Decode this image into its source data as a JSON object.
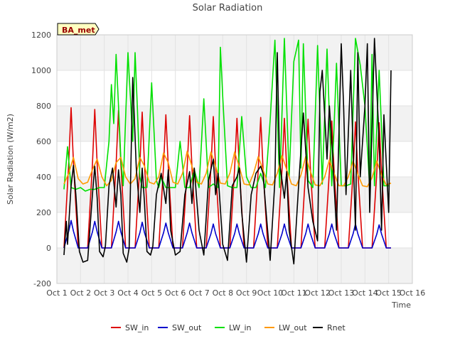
{
  "chart_data": {
    "type": "line",
    "title": "Solar Radiation",
    "xlabel": "Time",
    "ylabel": "Solar Radiation (W/m2)",
    "badge": "BA_met",
    "xlim": [
      1,
      16
    ],
    "ylim": [
      -200,
      1200
    ],
    "x_ticks": [
      1,
      2,
      3,
      4,
      5,
      6,
      7,
      8,
      9,
      10,
      11,
      12,
      13,
      14,
      15,
      16
    ],
    "x_tick_labels": [
      "Oct 1",
      "Oct 2",
      "Oct 3",
      "Oct 4",
      "Oct 5",
      "Oct 6",
      "Oct 7",
      "Oct 8",
      "Oct 9",
      "Oct 10",
      "Oct 11",
      "Oct 12",
      "Oct 13",
      "Oct 14",
      "Oct 15",
      "Oct 16"
    ],
    "y_ticks": [
      -200,
      0,
      200,
      400,
      600,
      800,
      1000,
      1200
    ],
    "y_tick_labels": [
      "-200",
      "0",
      "200",
      "400",
      "600",
      "800",
      "1000",
      "1200"
    ],
    "bands": [
      [
        -200,
        0
      ],
      [
        200,
        400
      ],
      [
        600,
        800
      ],
      [
        1000,
        1200
      ]
    ],
    "legend": [
      "SW_in",
      "SW_out",
      "LW_in",
      "LW_out",
      "Rnet"
    ],
    "series": [
      {
        "name": "SW_in",
        "color": "#dd0000",
        "x": [
          1.3,
          1.5,
          1.6,
          1.7,
          1.9,
          2.1,
          2.3,
          2.5,
          2.6,
          2.7,
          2.9,
          3.1,
          3.3,
          3.5,
          3.6,
          3.7,
          3.9,
          4.1,
          4.3,
          4.5,
          4.6,
          4.7,
          4.9,
          5.1,
          5.3,
          5.5,
          5.6,
          5.7,
          5.9,
          6.1,
          6.3,
          6.5,
          6.6,
          6.7,
          6.9,
          7.1,
          7.3,
          7.5,
          7.6,
          7.7,
          7.9,
          8.1,
          8.3,
          8.5,
          8.6,
          8.7,
          8.9,
          9.1,
          9.3,
          9.5,
          9.6,
          9.7,
          9.9,
          10.1,
          10.3,
          10.5,
          10.6,
          10.7,
          10.9,
          11.1,
          11.3,
          11.5,
          11.6,
          11.7,
          11.9,
          12.1,
          12.3,
          12.5,
          12.6,
          12.7,
          12.9,
          13.1,
          13.3,
          13.5,
          13.6,
          13.7,
          13.9,
          14.1,
          14.3,
          14.5,
          14.6,
          14.7,
          14.9,
          15.1
        ],
        "values": [
          0,
          480,
          790,
          480,
          0,
          0,
          0,
          470,
          780,
          470,
          0,
          0,
          0,
          470,
          775,
          470,
          0,
          0,
          0,
          465,
          765,
          465,
          0,
          0,
          0,
          460,
          750,
          460,
          0,
          0,
          0,
          455,
          745,
          455,
          0,
          0,
          0,
          450,
          740,
          450,
          0,
          0,
          0,
          445,
          730,
          445,
          0,
          0,
          0,
          445,
          735,
          445,
          0,
          0,
          0,
          440,
          730,
          440,
          0,
          0,
          0,
          440,
          725,
          440,
          0,
          0,
          0,
          430,
          715,
          430,
          0,
          0,
          0,
          430,
          710,
          430,
          0,
          0,
          0,
          425,
          705,
          425,
          0,
          0
        ]
      },
      {
        "name": "SW_out",
        "color": "#0000cc",
        "x": [
          1.3,
          1.5,
          1.6,
          1.7,
          1.9,
          2.1,
          2.3,
          2.5,
          2.6,
          2.7,
          2.9,
          3.1,
          3.3,
          3.5,
          3.6,
          3.7,
          3.9,
          4.1,
          4.3,
          4.5,
          4.6,
          4.7,
          4.9,
          5.1,
          5.3,
          5.5,
          5.6,
          5.7,
          5.9,
          6.1,
          6.3,
          6.5,
          6.6,
          6.7,
          6.9,
          7.1,
          7.3,
          7.5,
          7.6,
          7.7,
          7.9,
          8.1,
          8.3,
          8.5,
          8.6,
          8.7,
          8.9,
          9.1,
          9.3,
          9.5,
          9.6,
          9.7,
          9.9,
          10.1,
          10.3,
          10.5,
          10.6,
          10.7,
          10.9,
          11.1,
          11.3,
          11.5,
          11.6,
          11.7,
          11.9,
          12.1,
          12.3,
          12.5,
          12.6,
          12.7,
          12.9,
          13.1,
          13.3,
          13.5,
          13.6,
          13.7,
          13.9,
          14.1,
          14.3,
          14.5,
          14.6,
          14.7,
          14.9,
          15.1
        ],
        "values": [
          0,
          95,
          155,
          95,
          0,
          0,
          0,
          90,
          150,
          90,
          0,
          0,
          0,
          90,
          150,
          90,
          0,
          0,
          0,
          85,
          145,
          85,
          0,
          0,
          0,
          85,
          140,
          85,
          0,
          0,
          0,
          85,
          140,
          85,
          0,
          0,
          0,
          80,
          135,
          80,
          0,
          0,
          0,
          80,
          135,
          80,
          0,
          0,
          0,
          80,
          135,
          80,
          0,
          0,
          0,
          80,
          135,
          80,
          0,
          0,
          0,
          80,
          135,
          80,
          0,
          0,
          0,
          80,
          135,
          80,
          0,
          0,
          0,
          80,
          135,
          80,
          0,
          0,
          0,
          78,
          130,
          78,
          0,
          0
        ]
      },
      {
        "name": "LW_in",
        "color": "#00e000",
        "x": [
          1.3,
          1.45,
          1.6,
          1.8,
          2.0,
          2.2,
          2.4,
          2.6,
          2.8,
          3.0,
          3.2,
          3.3,
          3.4,
          3.5,
          3.6,
          3.7,
          3.8,
          4.0,
          4.2,
          4.3,
          4.4,
          4.5,
          4.6,
          4.8,
          5.0,
          5.2,
          5.3,
          5.4,
          5.6,
          5.8,
          6.0,
          6.2,
          6.4,
          6.6,
          6.8,
          7.0,
          7.2,
          7.4,
          7.6,
          7.8,
          7.9,
          8.0,
          8.2,
          8.4,
          8.6,
          8.8,
          9.0,
          9.2,
          9.4,
          9.6,
          9.8,
          10.0,
          10.2,
          10.3,
          10.4,
          10.6,
          10.8,
          11.0,
          11.2,
          11.3,
          11.4,
          11.6,
          11.8,
          12.0,
          12.2,
          12.4,
          12.6,
          12.8,
          13.0,
          13.2,
          13.4,
          13.6,
          13.8,
          14.0,
          14.2,
          14.3,
          14.4,
          14.6,
          14.8,
          15.0
        ],
        "values": [
          330,
          570,
          340,
          330,
          340,
          320,
          330,
          330,
          340,
          340,
          600,
          920,
          700,
          1090,
          800,
          500,
          350,
          1100,
          600,
          1100,
          780,
          400,
          340,
          340,
          930,
          380,
          340,
          400,
          340,
          340,
          340,
          600,
          340,
          340,
          440,
          340,
          840,
          340,
          360,
          340,
          1130,
          850,
          350,
          340,
          340,
          740,
          400,
          340,
          340,
          420,
          340,
          720,
          1170,
          780,
          340,
          1180,
          400,
          1050,
          1170,
          450,
          1150,
          380,
          340,
          1140,
          360,
          1120,
          350,
          1040,
          350,
          350,
          360,
          1180,
          1030,
          800,
          340,
          1090,
          350,
          1000,
          350,
          350
        ]
      },
      {
        "name": "LW_out",
        "color": "#ff9900",
        "x": [
          1.3,
          1.5,
          1.7,
          1.9,
          2.1,
          2.3,
          2.5,
          2.7,
          2.9,
          3.1,
          3.3,
          3.5,
          3.7,
          3.9,
          4.1,
          4.3,
          4.5,
          4.7,
          4.9,
          5.1,
          5.3,
          5.5,
          5.7,
          5.9,
          6.1,
          6.3,
          6.5,
          6.7,
          6.9,
          7.1,
          7.3,
          7.5,
          7.7,
          7.9,
          8.1,
          8.3,
          8.5,
          8.7,
          8.9,
          9.1,
          9.3,
          9.5,
          9.7,
          9.9,
          10.1,
          10.3,
          10.5,
          10.7,
          10.9,
          11.1,
          11.3,
          11.5,
          11.7,
          11.9,
          12.1,
          12.3,
          12.5,
          12.7,
          12.9,
          13.1,
          13.3,
          13.5,
          13.7,
          13.9,
          14.1,
          14.3,
          14.5,
          14.7,
          14.9,
          15.1
        ],
        "values": [
          360,
          420,
          510,
          390,
          360,
          370,
          440,
          500,
          400,
          350,
          380,
          480,
          510,
          400,
          360,
          390,
          510,
          460,
          370,
          360,
          400,
          535,
          480,
          370,
          360,
          420,
          545,
          460,
          370,
          360,
          420,
          540,
          460,
          365,
          360,
          420,
          540,
          455,
          360,
          355,
          420,
          515,
          440,
          360,
          355,
          420,
          520,
          440,
          360,
          350,
          410,
          515,
          430,
          355,
          350,
          400,
          495,
          420,
          350,
          350,
          400,
          490,
          415,
          350,
          345,
          395,
          490,
          410,
          355,
          365
        ]
      },
      {
        "name": "Rnet",
        "color": "#000000",
        "x": [
          1.3,
          1.4,
          1.45,
          1.6,
          1.7,
          1.8,
          1.95,
          2.1,
          2.3,
          2.5,
          2.6,
          2.7,
          2.8,
          2.95,
          3.05,
          3.2,
          3.35,
          3.5,
          3.6,
          3.7,
          3.8,
          3.95,
          4.05,
          4.2,
          4.35,
          4.5,
          4.6,
          4.7,
          4.8,
          4.95,
          5.05,
          5.2,
          5.4,
          5.6,
          5.7,
          5.8,
          6.0,
          6.2,
          6.4,
          6.6,
          6.7,
          6.8,
          7.0,
          7.2,
          7.4,
          7.6,
          7.7,
          7.8,
          8.0,
          8.2,
          8.4,
          8.6,
          8.7,
          8.8,
          9.0,
          9.2,
          9.4,
          9.6,
          9.7,
          9.8,
          10.0,
          10.2,
          10.3,
          10.4,
          10.6,
          10.7,
          10.8,
          11.0,
          11.2,
          11.4,
          11.5,
          11.6,
          11.8,
          12.0,
          12.1,
          12.2,
          12.4,
          12.5,
          12.6,
          12.8,
          13.0,
          13.1,
          13.2,
          13.4,
          13.6,
          13.7,
          13.8,
          14.0,
          14.1,
          14.2,
          14.4,
          14.6,
          14.7,
          14.8,
          15.0,
          15.1
        ],
        "values": [
          -40,
          150,
          20,
          350,
          465,
          300,
          -20,
          -80,
          -70,
          300,
          460,
          280,
          -20,
          -50,
          10,
          350,
          450,
          230,
          440,
          300,
          -30,
          -80,
          0,
          960,
          450,
          200,
          450,
          250,
          -20,
          -40,
          10,
          300,
          420,
          250,
          440,
          100,
          -40,
          -20,
          300,
          430,
          250,
          450,
          100,
          -40,
          380,
          500,
          300,
          420,
          20,
          -70,
          350,
          400,
          450,
          200,
          -80,
          300,
          420,
          460,
          420,
          250,
          -70,
          380,
          1100,
          480,
          280,
          430,
          100,
          -90,
          350,
          760,
          550,
          340,
          150,
          40,
          880,
          1000,
          500,
          800,
          600,
          100,
          1150,
          800,
          300,
          1000,
          100,
          1100,
          400,
          800,
          1150,
          200,
          1180,
          600,
          100,
          750,
          200,
          1000
        ]
      }
    ]
  }
}
